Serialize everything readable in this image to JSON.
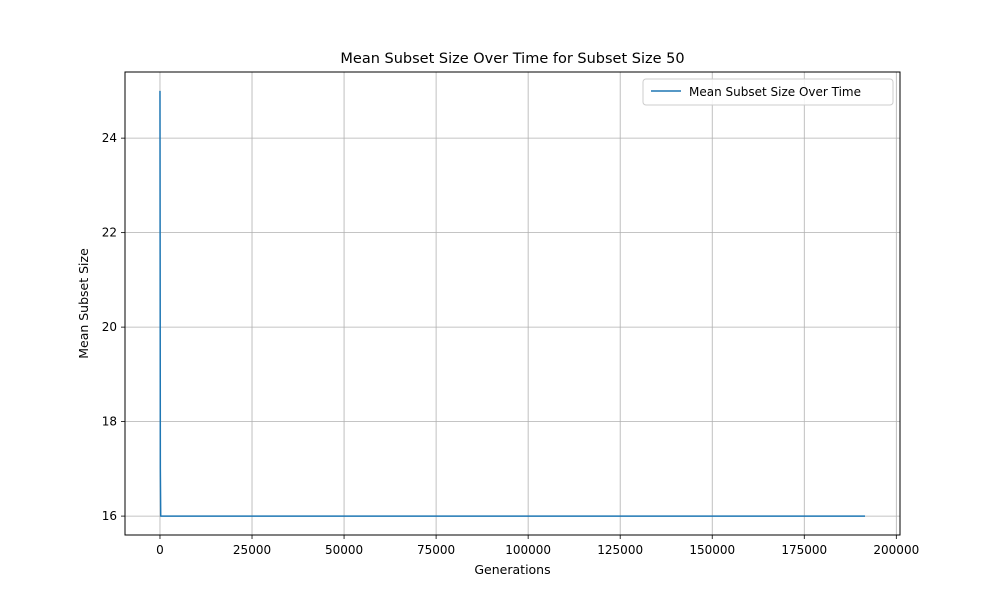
{
  "chart_data": {
    "type": "line",
    "title": "Mean Subset Size Over Time for Subset Size 50",
    "xlabel": "Generations",
    "ylabel": "Mean Subset Size",
    "xlim": [
      -9500,
      201000
    ],
    "ylim": [
      15.6,
      25.4
    ],
    "x_ticks": [
      0,
      25000,
      50000,
      75000,
      100000,
      125000,
      150000,
      175000,
      200000
    ],
    "x_tick_labels": [
      "0",
      "25000",
      "50000",
      "75000",
      "100000",
      "125000",
      "150000",
      "175000",
      "200000"
    ],
    "y_ticks": [
      16,
      18,
      20,
      22,
      24
    ],
    "y_tick_labels": [
      "16",
      "18",
      "20",
      "22",
      "24"
    ],
    "grid": true,
    "legend_position": "upper right",
    "series": [
      {
        "name": "Mean Subset Size Over Time",
        "color": "#1f77b4",
        "x": [
          0,
          100,
          200,
          400,
          1000,
          5000,
          25000,
          50000,
          75000,
          100000,
          125000,
          150000,
          175000,
          191500
        ],
        "y": [
          25,
          17,
          16,
          16,
          16,
          16,
          16,
          16,
          16,
          16,
          16,
          16,
          16,
          16
        ]
      }
    ]
  }
}
